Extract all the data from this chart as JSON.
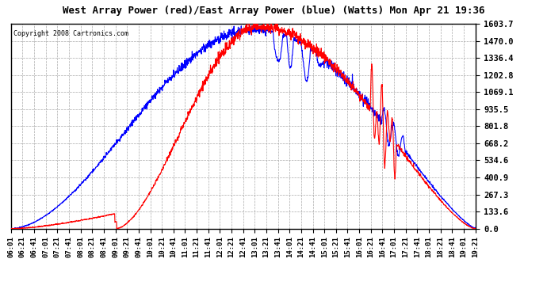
{
  "title": "West Array Power (red)/East Array Power (blue) (Watts) Mon Apr 21 19:36",
  "copyright": "Copyright 2008 Cartronics.com",
  "background_color": "#ffffff",
  "plot_bg_color": "#ffffff",
  "grid_color": "#aaaaaa",
  "red_color": "#ff0000",
  "blue_color": "#0000ff",
  "yticks": [
    0.0,
    133.6,
    267.3,
    400.9,
    534.6,
    668.2,
    801.8,
    935.5,
    1069.1,
    1202.8,
    1336.4,
    1470.0,
    1603.7
  ],
  "ymax": 1603.7,
  "ymin": 0.0,
  "x_start_hour": 6,
  "x_start_min": 1,
  "x_end_hour": 19,
  "x_end_min": 22,
  "tick_interval_min": 20
}
